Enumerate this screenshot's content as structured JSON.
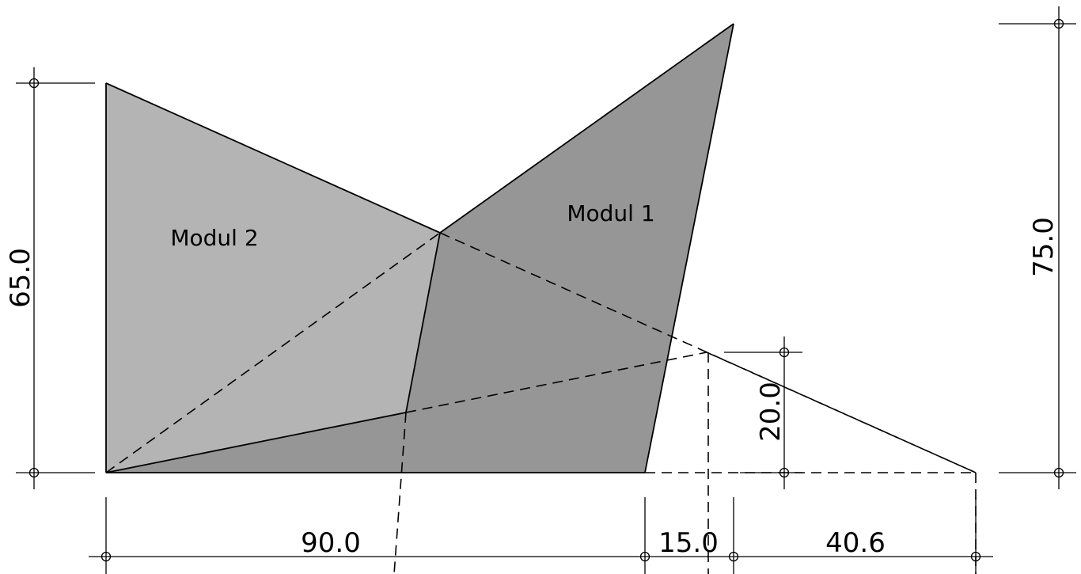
{
  "colors": {
    "background": "#ffffff",
    "modul2_fill": "#b4b4b4",
    "modul1_fill": "#969696",
    "line": "#000000"
  },
  "modules": {
    "modul1": {
      "label": "Modul 1"
    },
    "modul2": {
      "label": "Modul 2"
    }
  },
  "dimensions": {
    "left_height": "65.0",
    "right_height": "75.0",
    "inner_height": "20.0",
    "bottom_1": "90.0",
    "bottom_2": "15.0",
    "bottom_3": "40.6"
  }
}
